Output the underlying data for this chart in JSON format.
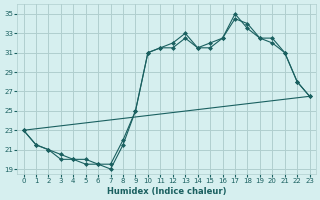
{
  "xlabel": "Humidex (Indice chaleur)",
  "background_color": "#d6efef",
  "grid_color": "#b0cece",
  "line_color": "#1a6060",
  "xlim": [
    -0.5,
    23.5
  ],
  "ylim": [
    18.5,
    36
  ],
  "yticks": [
    19,
    21,
    23,
    25,
    27,
    29,
    31,
    33,
    35
  ],
  "xticks": [
    0,
    1,
    2,
    3,
    4,
    5,
    6,
    7,
    8,
    9,
    10,
    11,
    12,
    13,
    14,
    15,
    16,
    17,
    18,
    19,
    20,
    21,
    22,
    23
  ],
  "line1_x": [
    0,
    1,
    2,
    3,
    4,
    5,
    6,
    7,
    8,
    9,
    10,
    11,
    12,
    13,
    14,
    15,
    16,
    17,
    18,
    19,
    20,
    21,
    22,
    23
  ],
  "line1_y": [
    23,
    21.5,
    21,
    20,
    20,
    19.5,
    19.5,
    19,
    21.5,
    25,
    31,
    31.5,
    31.5,
    32.5,
    31.5,
    31.5,
    32.5,
    35,
    33.5,
    32.5,
    32,
    31,
    28,
    26.5
  ],
  "line2_x": [
    0,
    1,
    2,
    3,
    4,
    5,
    6,
    7,
    8,
    9,
    10,
    11,
    12,
    13,
    14,
    15,
    16,
    17,
    18,
    19,
    20,
    21,
    22,
    23
  ],
  "line2_y": [
    23,
    21.5,
    21,
    20.5,
    20,
    20,
    19.5,
    19.5,
    22,
    25,
    31,
    31.5,
    32,
    33,
    31.5,
    32,
    32.5,
    34.5,
    34,
    32.5,
    32.5,
    31,
    28,
    26.5
  ],
  "line3_x": [
    0,
    23
  ],
  "line3_y": [
    23,
    26.5
  ],
  "markersize": 2.5
}
